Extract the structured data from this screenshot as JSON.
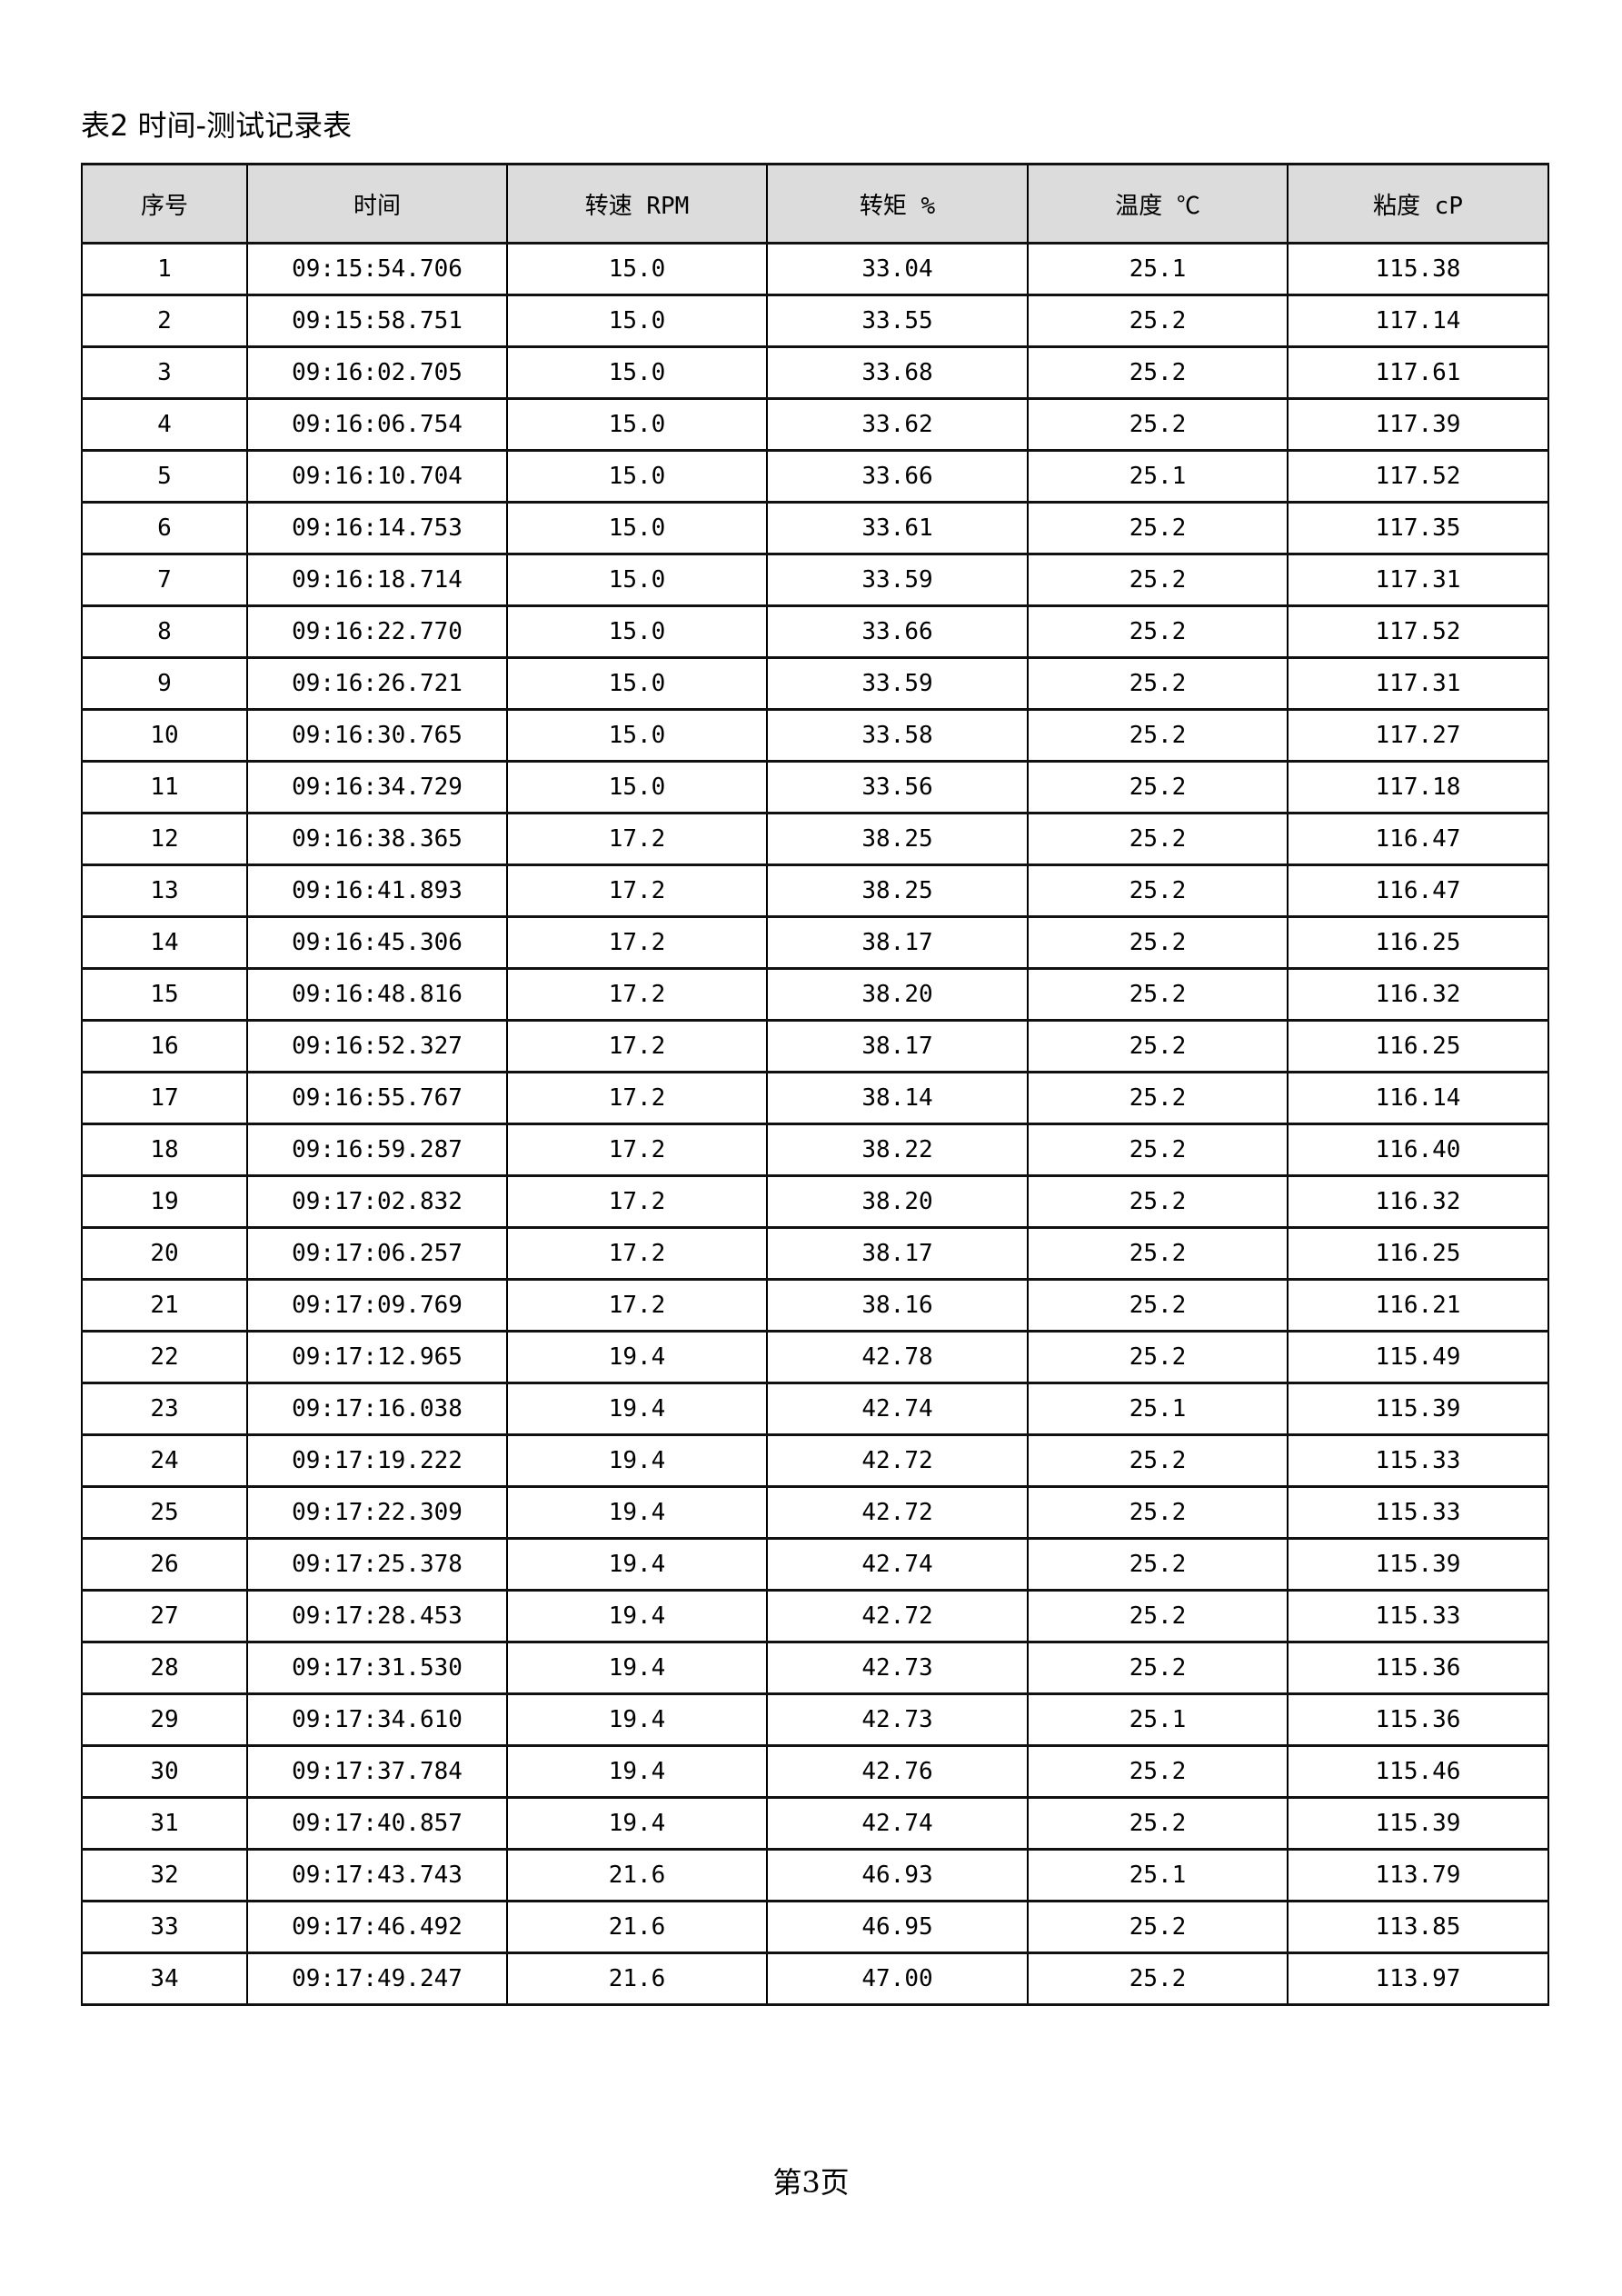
{
  "title": "表2 时间-测试记录表",
  "columns": [
    "序号",
    "时间",
    "转速 RPM",
    "转矩 %",
    "温度 ℃",
    "粘度 cP"
  ],
  "rows": [
    [
      "1",
      "09:15:54.706",
      "15.0",
      "33.04",
      "25.1",
      "115.38"
    ],
    [
      "2",
      "09:15:58.751",
      "15.0",
      "33.55",
      "25.2",
      "117.14"
    ],
    [
      "3",
      "09:16:02.705",
      "15.0",
      "33.68",
      "25.2",
      "117.61"
    ],
    [
      "4",
      "09:16:06.754",
      "15.0",
      "33.62",
      "25.2",
      "117.39"
    ],
    [
      "5",
      "09:16:10.704",
      "15.0",
      "33.66",
      "25.1",
      "117.52"
    ],
    [
      "6",
      "09:16:14.753",
      "15.0",
      "33.61",
      "25.2",
      "117.35"
    ],
    [
      "7",
      "09:16:18.714",
      "15.0",
      "33.59",
      "25.2",
      "117.31"
    ],
    [
      "8",
      "09:16:22.770",
      "15.0",
      "33.66",
      "25.2",
      "117.52"
    ],
    [
      "9",
      "09:16:26.721",
      "15.0",
      "33.59",
      "25.2",
      "117.31"
    ],
    [
      "10",
      "09:16:30.765",
      "15.0",
      "33.58",
      "25.2",
      "117.27"
    ],
    [
      "11",
      "09:16:34.729",
      "15.0",
      "33.56",
      "25.2",
      "117.18"
    ],
    [
      "12",
      "09:16:38.365",
      "17.2",
      "38.25",
      "25.2",
      "116.47"
    ],
    [
      "13",
      "09:16:41.893",
      "17.2",
      "38.25",
      "25.2",
      "116.47"
    ],
    [
      "14",
      "09:16:45.306",
      "17.2",
      "38.17",
      "25.2",
      "116.25"
    ],
    [
      "15",
      "09:16:48.816",
      "17.2",
      "38.20",
      "25.2",
      "116.32"
    ],
    [
      "16",
      "09:16:52.327",
      "17.2",
      "38.17",
      "25.2",
      "116.25"
    ],
    [
      "17",
      "09:16:55.767",
      "17.2",
      "38.14",
      "25.2",
      "116.14"
    ],
    [
      "18",
      "09:16:59.287",
      "17.2",
      "38.22",
      "25.2",
      "116.40"
    ],
    [
      "19",
      "09:17:02.832",
      "17.2",
      "38.20",
      "25.2",
      "116.32"
    ],
    [
      "20",
      "09:17:06.257",
      "17.2",
      "38.17",
      "25.2",
      "116.25"
    ],
    [
      "21",
      "09:17:09.769",
      "17.2",
      "38.16",
      "25.2",
      "116.21"
    ],
    [
      "22",
      "09:17:12.965",
      "19.4",
      "42.78",
      "25.2",
      "115.49"
    ],
    [
      "23",
      "09:17:16.038",
      "19.4",
      "42.74",
      "25.1",
      "115.39"
    ],
    [
      "24",
      "09:17:19.222",
      "19.4",
      "42.72",
      "25.2",
      "115.33"
    ],
    [
      "25",
      "09:17:22.309",
      "19.4",
      "42.72",
      "25.2",
      "115.33"
    ],
    [
      "26",
      "09:17:25.378",
      "19.4",
      "42.74",
      "25.2",
      "115.39"
    ],
    [
      "27",
      "09:17:28.453",
      "19.4",
      "42.72",
      "25.2",
      "115.33"
    ],
    [
      "28",
      "09:17:31.530",
      "19.4",
      "42.73",
      "25.2",
      "115.36"
    ],
    [
      "29",
      "09:17:34.610",
      "19.4",
      "42.73",
      "25.1",
      "115.36"
    ],
    [
      "30",
      "09:17:37.784",
      "19.4",
      "42.76",
      "25.2",
      "115.46"
    ],
    [
      "31",
      "09:17:40.857",
      "19.4",
      "42.74",
      "25.2",
      "115.39"
    ],
    [
      "32",
      "09:17:43.743",
      "21.6",
      "46.93",
      "25.1",
      "113.79"
    ],
    [
      "33",
      "09:17:46.492",
      "21.6",
      "46.95",
      "25.2",
      "113.85"
    ],
    [
      "34",
      "09:17:49.247",
      "21.6",
      "47.00",
      "25.2",
      "113.97"
    ]
  ],
  "page_label": "第3页",
  "colors": {
    "header_bg": "#dcdcdc",
    "border": "#000000"
  }
}
